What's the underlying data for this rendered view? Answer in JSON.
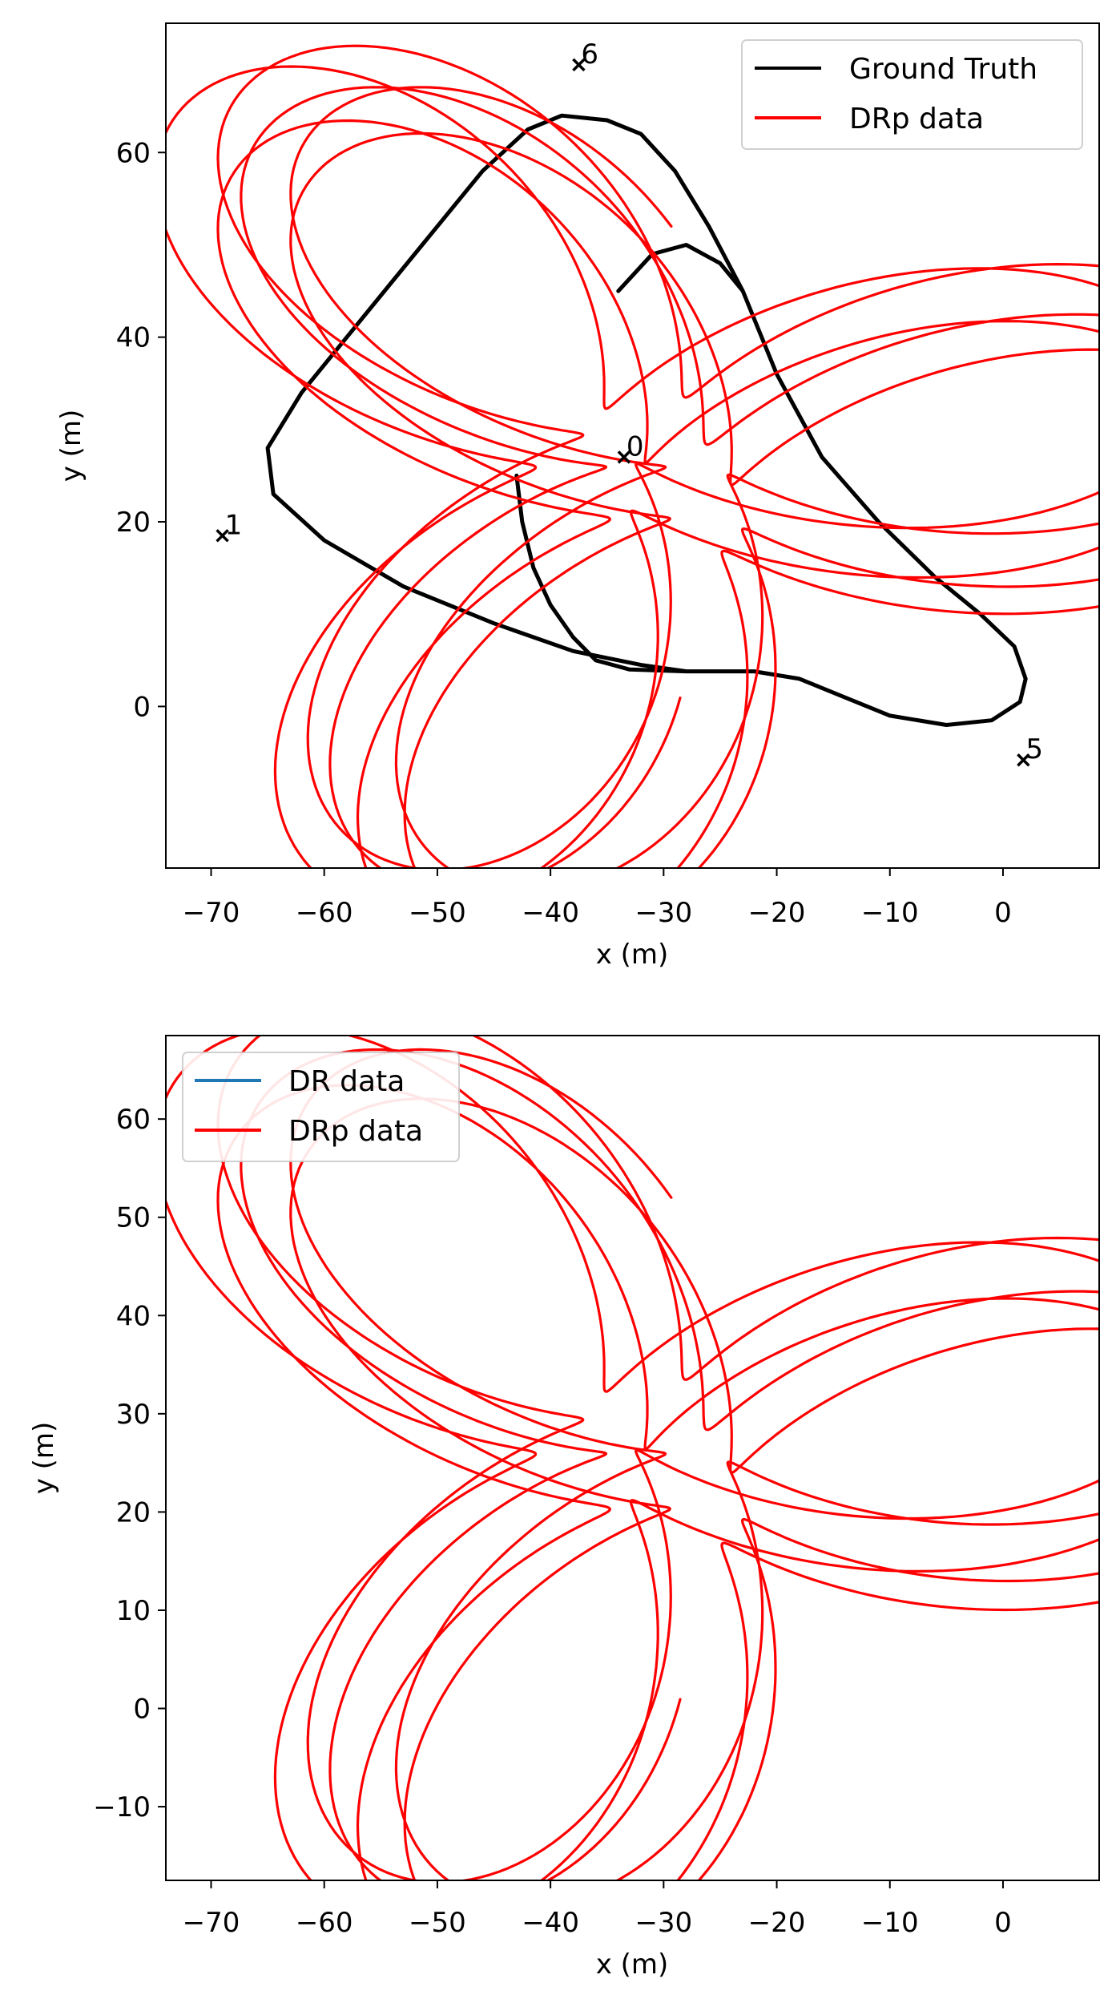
{
  "chart_data": [
    {
      "type": "line",
      "xlabel": "x (m)",
      "ylabel": "y (m)",
      "xlim": [
        -74,
        8.5
      ],
      "ylim": [
        -17.5,
        74
      ],
      "xticks": [
        -70,
        -60,
        -50,
        -40,
        -30,
        -20,
        -10,
        0
      ],
      "yticks": [
        0,
        20,
        40,
        60
      ],
      "grid": false,
      "legend_position": "top-right",
      "series": [
        {
          "name": "Ground Truth",
          "color": "#000000",
          "start": [
            -43,
            25
          ],
          "points": [
            [
              -43,
              25
            ],
            [
              -42.5,
              20
            ],
            [
              -41.5,
              15
            ],
            [
              -40,
              11
            ],
            [
              -38,
              7.5
            ],
            [
              -36,
              5
            ],
            [
              -33,
              4
            ],
            [
              -28,
              3.8
            ],
            [
              -22,
              3.8
            ],
            [
              -18,
              3
            ],
            [
              -14,
              1
            ],
            [
              -10,
              -1
            ],
            [
              -5,
              -2
            ],
            [
              -1,
              -1.5
            ],
            [
              1.5,
              0.5
            ],
            [
              2,
              3
            ],
            [
              1,
              6.5
            ],
            [
              -2,
              10
            ],
            [
              -6,
              14
            ],
            [
              -11,
              20
            ],
            [
              -16,
              27
            ],
            [
              -20,
              36
            ],
            [
              -23,
              45
            ],
            [
              -26,
              52
            ],
            [
              -29,
              58
            ],
            [
              -32,
              62
            ],
            [
              -35,
              63.5
            ],
            [
              -39,
              64
            ],
            [
              -42,
              62.5
            ],
            [
              -46,
              58
            ],
            [
              -50,
              52
            ],
            [
              -54,
              46
            ],
            [
              -58,
              40
            ],
            [
              -62,
              34
            ],
            [
              -65,
              28
            ],
            [
              -64.5,
              23
            ],
            [
              -60,
              18
            ],
            [
              -53,
              13
            ],
            [
              -45,
              9
            ],
            [
              -38,
              6
            ],
            [
              -32,
              4.5
            ],
            [
              -28,
              3.8
            ],
            [
              -22,
              3.8
            ],
            [
              -18,
              3
            ],
            [
              -14,
              1
            ],
            [
              -10,
              -1
            ],
            [
              -5,
              -2
            ],
            [
              -1,
              -1.5
            ],
            [
              1.5,
              0.5
            ],
            [
              2,
              3
            ],
            [
              1,
              6.5
            ],
            [
              -2,
              10
            ],
            [
              -6,
              14
            ],
            [
              -11,
              20
            ],
            [
              -16,
              27
            ],
            [
              -20,
              36
            ],
            [
              -23,
              45
            ],
            [
              -25,
              48
            ],
            [
              -28,
              50
            ],
            [
              -31,
              49
            ],
            [
              -34,
              45
            ]
          ]
        },
        {
          "name": "DRp data",
          "color": "#ff0000",
          "start": [
            -34,
            45
          ],
          "loop_center": [
            -31,
            25
          ],
          "loop_count": 5.5
        }
      ],
      "markers": [
        {
          "label": "0",
          "x": -33.5,
          "y": 27
        },
        {
          "label": "1",
          "x": -69,
          "y": 18.5
        },
        {
          "label": "5",
          "x": 1.8,
          "y": -5.8
        },
        {
          "label": "6",
          "x": -37.5,
          "y": 69.5
        }
      ]
    },
    {
      "type": "line",
      "xlabel": "x (m)",
      "ylabel": "y (m)",
      "xlim": [
        -74,
        8.5
      ],
      "ylim": [
        -17.5,
        68.5
      ],
      "xticks": [
        -70,
        -60,
        -50,
        -40,
        -30,
        -20,
        -10,
        0
      ],
      "yticks": [
        -10,
        0,
        10,
        20,
        30,
        40,
        50,
        60
      ],
      "grid": false,
      "legend_position": "top-left",
      "series": [
        {
          "name": "DR data",
          "color": "#1f77b4"
        },
        {
          "name": "DRp data",
          "color": "#ff0000",
          "start": [
            -34,
            45
          ],
          "loop_center": [
            -31,
            25
          ],
          "loop_count": 5.5
        }
      ]
    }
  ]
}
